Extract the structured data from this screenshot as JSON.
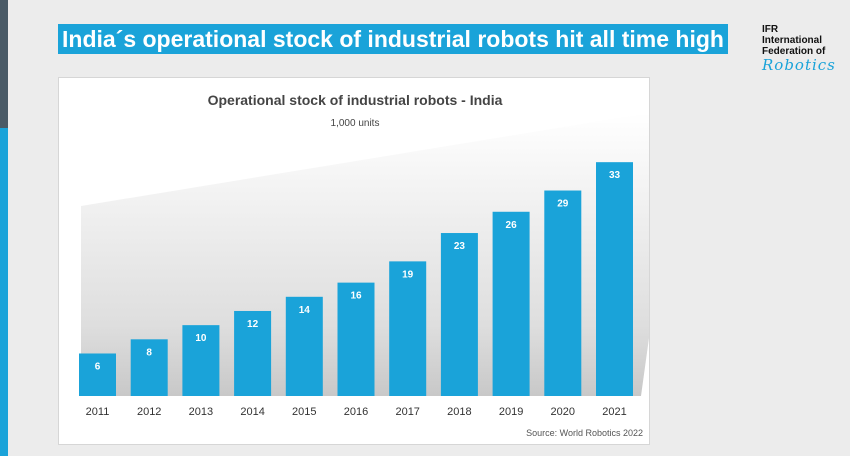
{
  "slide": {
    "title": "India´s operational stock of industrial robots hit all time high"
  },
  "logo": {
    "line1": "IFR",
    "line2": "International",
    "line3": "Federation of",
    "script": "Robotics"
  },
  "colors": {
    "accent": "#1aa3d9",
    "dark": "#4a5a66"
  },
  "chart_data": {
    "type": "bar",
    "title": "Operational stock of industrial robots - India",
    "subtitle": "1,000 units",
    "source": "Source: World Robotics 2022",
    "categories": [
      "2011",
      "2012",
      "2013",
      "2014",
      "2015",
      "2016",
      "2017",
      "2018",
      "2019",
      "2020",
      "2021"
    ],
    "values": [
      6,
      8,
      10,
      12,
      14,
      16,
      19,
      23,
      26,
      29,
      33
    ],
    "bar_labels": [
      "6",
      "8",
      "10",
      "12",
      "14",
      "16",
      "19",
      "23",
      "26",
      "29",
      "33"
    ],
    "ylim": [
      0,
      35
    ],
    "grid": false,
    "legend": "none",
    "bar_color": "#1aa3d9"
  }
}
